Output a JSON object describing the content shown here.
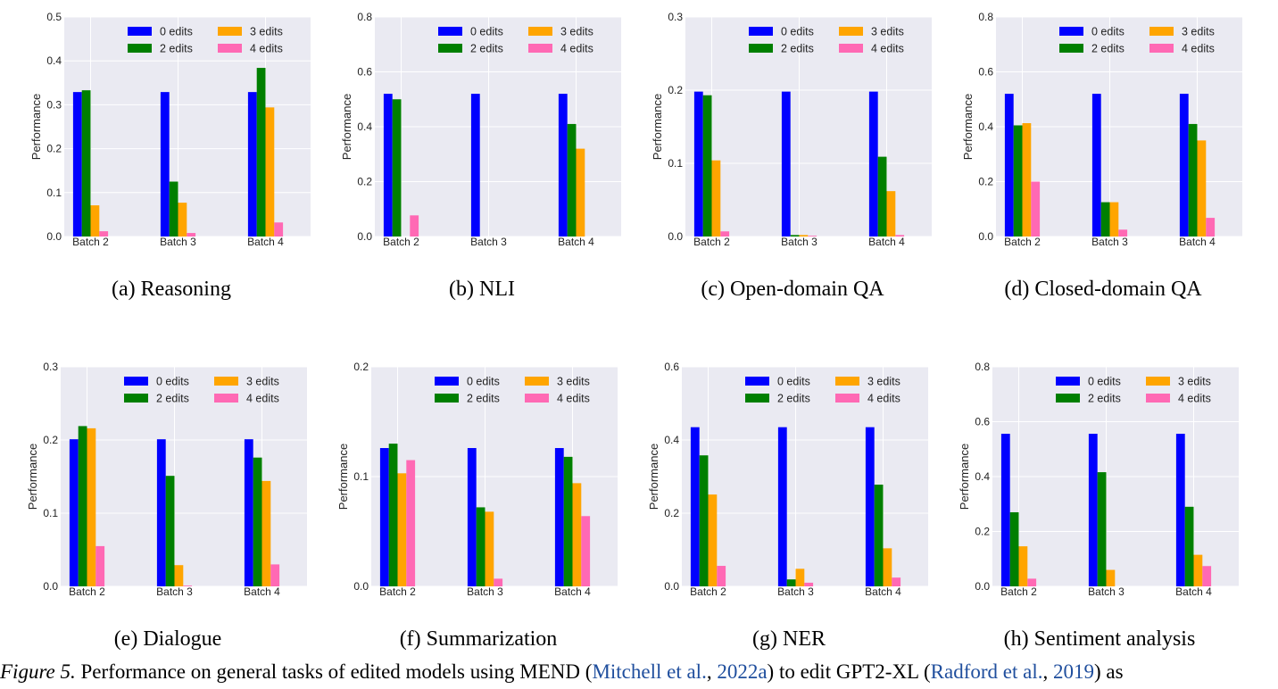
{
  "legend_labels": [
    "0 edits",
    "2 edits",
    "3 edits",
    "4 edits"
  ],
  "colors": {
    "0 edits": "#0000ff",
    "2 edits": "#007f00",
    "3 edits": "#ffa500",
    "4 edits": "#ff69b4"
  },
  "chart_data": [
    {
      "type": "bar",
      "caption": "(a)  Reasoning",
      "ylabel": "Performance",
      "ylim": [
        0,
        0.5
      ],
      "yticks": [
        "0.0",
        "0.1",
        "0.2",
        "0.3",
        "0.4",
        "0.5"
      ],
      "categories": [
        "Batch 2",
        "Batch 3",
        "Batch 4"
      ],
      "legend": "top-right",
      "grid": true,
      "series": [
        {
          "name": "0 edits",
          "values": [
            0.329,
            0.329,
            0.329
          ]
        },
        {
          "name": "2 edits",
          "values": [
            0.333,
            0.125,
            0.384
          ]
        },
        {
          "name": "3 edits",
          "values": [
            0.071,
            0.077,
            0.294
          ]
        },
        {
          "name": "4 edits",
          "values": [
            0.012,
            0.008,
            0.032
          ]
        }
      ]
    },
    {
      "type": "bar",
      "caption": "(b)  NLI",
      "ylabel": "Performance",
      "ylim": [
        0,
        0.8
      ],
      "yticks": [
        "0.0",
        "0.2",
        "0.4",
        "0.6",
        "0.8"
      ],
      "categories": [
        "Batch 2",
        "Batch 3",
        "Batch 4"
      ],
      "legend": "top-right",
      "grid": true,
      "series": [
        {
          "name": "0 edits",
          "values": [
            0.52,
            0.52,
            0.52
          ]
        },
        {
          "name": "2 edits",
          "values": [
            0.5,
            0.0,
            0.41
          ]
        },
        {
          "name": "3 edits",
          "values": [
            0.0,
            0.0,
            0.32
          ]
        },
        {
          "name": "4 edits",
          "values": [
            0.077,
            0.0,
            0.0
          ]
        }
      ]
    },
    {
      "type": "bar",
      "caption": "(c)  Open-domain QA",
      "ylabel": "Performance",
      "ylim": [
        0,
        0.3
      ],
      "yticks": [
        "0.0",
        "0.1",
        "0.2",
        "0.3"
      ],
      "categories": [
        "Batch 2",
        "Batch 3",
        "Batch 4"
      ],
      "legend": "top-right",
      "grid": true,
      "series": [
        {
          "name": "0 edits",
          "values": [
            0.198,
            0.198,
            0.198
          ]
        },
        {
          "name": "2 edits",
          "values": [
            0.193,
            0.002,
            0.109
          ]
        },
        {
          "name": "3 edits",
          "values": [
            0.104,
            0.002,
            0.062
          ]
        },
        {
          "name": "4 edits",
          "values": [
            0.007,
            0.001,
            0.002
          ]
        }
      ]
    },
    {
      "type": "bar",
      "caption": "(d)  Closed-domain QA",
      "ylabel": "Performance",
      "ylim": [
        0,
        0.8
      ],
      "yticks": [
        "0.0",
        "0.2",
        "0.4",
        "0.6",
        "0.8"
      ],
      "categories": [
        "Batch 2",
        "Batch 3",
        "Batch 4"
      ],
      "legend": "top-right",
      "grid": true,
      "series": [
        {
          "name": "0 edits",
          "values": [
            0.52,
            0.52,
            0.52
          ]
        },
        {
          "name": "2 edits",
          "values": [
            0.405,
            0.125,
            0.41
          ]
        },
        {
          "name": "3 edits",
          "values": [
            0.413,
            0.125,
            0.35
          ]
        },
        {
          "name": "4 edits",
          "values": [
            0.2,
            0.025,
            0.068
          ]
        }
      ]
    },
    {
      "type": "bar",
      "caption": "(e)  Dialogue",
      "ylabel": "Performance",
      "ylim": [
        0,
        0.3
      ],
      "yticks": [
        "0.0",
        "0.1",
        "0.2",
        "0.3"
      ],
      "categories": [
        "Batch 2",
        "Batch 3",
        "Batch 4"
      ],
      "legend": "top-right",
      "grid": true,
      "series": [
        {
          "name": "0 edits",
          "values": [
            0.201,
            0.201,
            0.201
          ]
        },
        {
          "name": "2 edits",
          "values": [
            0.219,
            0.151,
            0.176
          ]
        },
        {
          "name": "3 edits",
          "values": [
            0.216,
            0.029,
            0.144
          ]
        },
        {
          "name": "4 edits",
          "values": [
            0.055,
            0.001,
            0.03
          ]
        }
      ]
    },
    {
      "type": "bar",
      "caption": "(f)  Summarization",
      "ylabel": "Performance",
      "ylim": [
        0,
        0.2
      ],
      "yticks": [
        "0.0",
        "0.1",
        "0.2"
      ],
      "categories": [
        "Batch 2",
        "Batch 3",
        "Batch 4"
      ],
      "legend": "top-right",
      "grid": true,
      "series": [
        {
          "name": "0 edits",
          "values": [
            0.126,
            0.126,
            0.126
          ]
        },
        {
          "name": "2 edits",
          "values": [
            0.13,
            0.072,
            0.118
          ]
        },
        {
          "name": "3 edits",
          "values": [
            0.103,
            0.068,
            0.094
          ]
        },
        {
          "name": "4 edits",
          "values": [
            0.115,
            0.007,
            0.064
          ]
        }
      ]
    },
    {
      "type": "bar",
      "caption": "(g)  NER",
      "ylabel": "Performance",
      "ylim": [
        0,
        0.6
      ],
      "yticks": [
        "0.0",
        "0.2",
        "0.4",
        "0.6"
      ],
      "categories": [
        "Batch 2",
        "Batch 3",
        "Batch 4"
      ],
      "legend": "top-right",
      "grid": true,
      "series": [
        {
          "name": "0 edits",
          "values": [
            0.435,
            0.435,
            0.435
          ]
        },
        {
          "name": "2 edits",
          "values": [
            0.358,
            0.019,
            0.278
          ]
        },
        {
          "name": "3 edits",
          "values": [
            0.251,
            0.048,
            0.104
          ]
        },
        {
          "name": "4 edits",
          "values": [
            0.056,
            0.01,
            0.024
          ]
        }
      ]
    },
    {
      "type": "bar",
      "caption": "(h)  Sentiment analysis",
      "ylabel": "Performance",
      "ylim": [
        0,
        0.8
      ],
      "yticks": [
        "0.0",
        "0.2",
        "0.4",
        "0.6",
        "0.8"
      ],
      "categories": [
        "Batch 2",
        "Batch 3",
        "Batch 4"
      ],
      "legend": "top-right",
      "grid": true,
      "series": [
        {
          "name": "0 edits",
          "values": [
            0.556,
            0.556,
            0.556
          ]
        },
        {
          "name": "2 edits",
          "values": [
            0.27,
            0.416,
            0.29
          ]
        },
        {
          "name": "3 edits",
          "values": [
            0.146,
            0.06,
            0.115
          ]
        },
        {
          "name": "4 edits",
          "values": [
            0.028,
            0.0,
            0.074
          ]
        }
      ]
    }
  ],
  "caption": {
    "label": "Figure 5.",
    "t1": " Performance on general tasks of edited models using MEND (",
    "c1": "Mitchell et al.",
    "t2": ", ",
    "c2": "2022a",
    "t3": ") to edit GPT2-XL (",
    "c3": "Radford et al.",
    "t4": ", ",
    "c4": "2019",
    "t5": ") as"
  }
}
